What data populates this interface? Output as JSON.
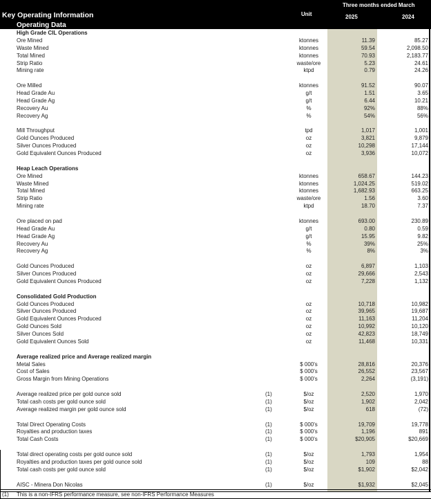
{
  "header": {
    "title": "Key Operating Information",
    "subtitle": "Operating Data",
    "unit_label": "Unit",
    "period_label": "Three months ended March",
    "year_current": "2025",
    "year_prior": "2024"
  },
  "rows": [
    {
      "type": "section",
      "label": "High Grade CIL Operations"
    },
    {
      "label": "Ore Mined",
      "unit": "ktonnes",
      "v2025": "11.39",
      "v2024": "85.27"
    },
    {
      "label": "Waste Mined",
      "unit": "ktonnes",
      "v2025": "59.54",
      "v2024": "2,098.50"
    },
    {
      "label": "Total Mined",
      "unit": "ktonnes",
      "v2025": "70.93",
      "v2024": "2,183.77"
    },
    {
      "label": "Strip Ratio",
      "unit": "waste/ore",
      "v2025": "5.23",
      "v2024": "24.61"
    },
    {
      "label": "Mining rate",
      "unit": "ktpd",
      "v2025": "0.79",
      "v2024": "24.26"
    },
    {
      "type": "blank"
    },
    {
      "label": "Ore Milled",
      "unit": "ktonnes",
      "v2025": "91.52",
      "v2024": "90.07"
    },
    {
      "label": "Head Grade Au",
      "unit": "g/t",
      "v2025": "1.51",
      "v2024": "3.65"
    },
    {
      "label": "Head Grade Ag",
      "unit": "g/t",
      "v2025": "6.44",
      "v2024": "10.21"
    },
    {
      "label": "Recovery Au",
      "unit": "%",
      "v2025": "92%",
      "v2024": "88%"
    },
    {
      "label": "Recovery Ag",
      "unit": "%",
      "v2025": "54%",
      "v2024": "56%"
    },
    {
      "type": "blank"
    },
    {
      "label": "Mill Throughput",
      "unit": "tpd",
      "v2025": "1,017",
      "v2024": "1,001"
    },
    {
      "label": "Gold Ounces Produced",
      "unit": "oz",
      "v2025": "3,821",
      "v2024": "9,879"
    },
    {
      "label": "Silver Ounces Produced",
      "unit": "oz",
      "v2025": "10,298",
      "v2024": "17,144"
    },
    {
      "label": "Gold Equivalent Ounces Produced",
      "unit": "oz",
      "v2025": "3,936",
      "v2024": "10,072"
    },
    {
      "type": "blank"
    },
    {
      "type": "section",
      "label": "Heap Leach Operations"
    },
    {
      "label": "Ore Mined",
      "unit": "ktonnes",
      "v2025": "658.67",
      "v2024": "144.23"
    },
    {
      "label": "Waste Mined",
      "unit": "ktonnes",
      "v2025": "1,024.25",
      "v2024": "519.02"
    },
    {
      "label": "Total Mined",
      "unit": "ktonnes",
      "v2025": "1,682.93",
      "v2024": "663.25"
    },
    {
      "label": "Strip Ratio",
      "unit": "waste/ore",
      "v2025": "1.56",
      "v2024": "3.60"
    },
    {
      "label": "Mining rate",
      "unit": "ktpd",
      "v2025": "18.70",
      "v2024": "7.37"
    },
    {
      "type": "blank"
    },
    {
      "label": "Ore placed on pad",
      "unit": "ktonnes",
      "v2025": "693.00",
      "v2024": "230.89"
    },
    {
      "label": "Head Grade Au",
      "unit": "g/t",
      "v2025": "0.80",
      "v2024": "0.59"
    },
    {
      "label": "Head Grade Ag",
      "unit": "g/t",
      "v2025": "15.95",
      "v2024": "9.82"
    },
    {
      "label": "Recovery Au",
      "unit": "%",
      "v2025": "39%",
      "v2024": "25%"
    },
    {
      "label": "Recovery Ag",
      "unit": "%",
      "v2025": "8%",
      "v2024": "3%"
    },
    {
      "type": "blank"
    },
    {
      "label": "Gold Ounces Produced",
      "unit": "oz",
      "v2025": "6,897",
      "v2024": "1,103"
    },
    {
      "label": "Silver Ounces Produced",
      "unit": "oz",
      "v2025": "29,666",
      "v2024": "2,543"
    },
    {
      "label": "Gold Equivalent Ounces Produced",
      "unit": "oz",
      "v2025": "7,228",
      "v2024": "1,132"
    },
    {
      "type": "blank"
    },
    {
      "type": "section",
      "label": "Consolidated Gold Production"
    },
    {
      "label": "Gold Ounces Produced",
      "unit": "oz",
      "v2025": "10,718",
      "v2024": "10,982"
    },
    {
      "label": "Silver Ounces Produced",
      "unit": "oz",
      "v2025": "39,965",
      "v2024": "19,687"
    },
    {
      "label": "Gold Equivalent Ounces Produced",
      "unit": "oz",
      "v2025": "11,163",
      "v2024": "11,204"
    },
    {
      "label": "Gold Ounces Sold",
      "unit": "oz",
      "v2025": "10,992",
      "v2024": "10,120"
    },
    {
      "label": "Silver Ounces Sold",
      "unit": "oz",
      "v2025": "42,823",
      "v2024": "18,749"
    },
    {
      "label": "Gold Equivalent Ounces Sold",
      "unit": "oz",
      "v2025": "11,468",
      "v2024": "10,331"
    },
    {
      "type": "blank"
    },
    {
      "type": "section",
      "label": "Average realized price and Average realized margin"
    },
    {
      "label": "Metal Sales",
      "unit": "$ 000's",
      "v2025": "28,816",
      "v2024": "20,376"
    },
    {
      "label": "Cost of Sales",
      "unit": "$ 000's",
      "v2025": "26,552",
      "v2024": "23,567"
    },
    {
      "label": "Gross Margin from Mining Operations",
      "unit": "$ 000's",
      "v2025": "2,264",
      "v2024": "(3,191)"
    },
    {
      "type": "blank"
    },
    {
      "label": "Average realized price per gold ounce sold",
      "note": "(1)",
      "unit": "$/oz",
      "v2025": "2,520",
      "v2024": "1,970"
    },
    {
      "label": "Total cash costs per gold ounce sold",
      "note": "(1)",
      "unit": "$/oz",
      "v2025": "1,902",
      "v2024": "2,042"
    },
    {
      "label": "Average realized margin per gold ounce sold",
      "note": "(1)",
      "unit": "$/oz",
      "v2025": "618",
      "v2024": "(72)"
    },
    {
      "type": "blank"
    },
    {
      "label": "Total Direct Operating Costs",
      "note": "(1)",
      "unit": "$ 000's",
      "v2025": "19,709",
      "v2024": "19,778"
    },
    {
      "label": "Royalties and production taxes",
      "note": "(1)",
      "unit": "$ 000's",
      "v2025": "1,196",
      "v2024": "891"
    },
    {
      "label": "Total Cash Costs",
      "note": "(1)",
      "unit": "$ 000's",
      "v2025": "$20,905",
      "v2024": "$20,669"
    },
    {
      "type": "blank"
    },
    {
      "label": "Total direct operating costs per gold ounce sold",
      "note": "(1)",
      "unit": "$/oz",
      "v2025": "1,793",
      "v2024": "1,954"
    },
    {
      "label": "Royalties and production taxes per gold ounce sold",
      "note": "(1)",
      "unit": "$/oz",
      "v2025": "109",
      "v2024": "88"
    },
    {
      "label": "Total cash costs per gold ounce sold",
      "note": "(1)",
      "unit": "$/oz",
      "v2025": "$1,902",
      "v2024": "$2,042"
    },
    {
      "type": "blank"
    },
    {
      "label": "AISC - Minera Don Nicolas",
      "note": "(1)",
      "unit": "$/oz",
      "v2025": "$1,932",
      "v2024": "$2,045"
    }
  ],
  "footnote": {
    "mark": "(1)",
    "text": "This is a non-IFRS performance measure, see non-IFRS Performance Measures"
  },
  "colors": {
    "header_bg": "#000000",
    "current_year_shade": "#d9d7c4"
  }
}
